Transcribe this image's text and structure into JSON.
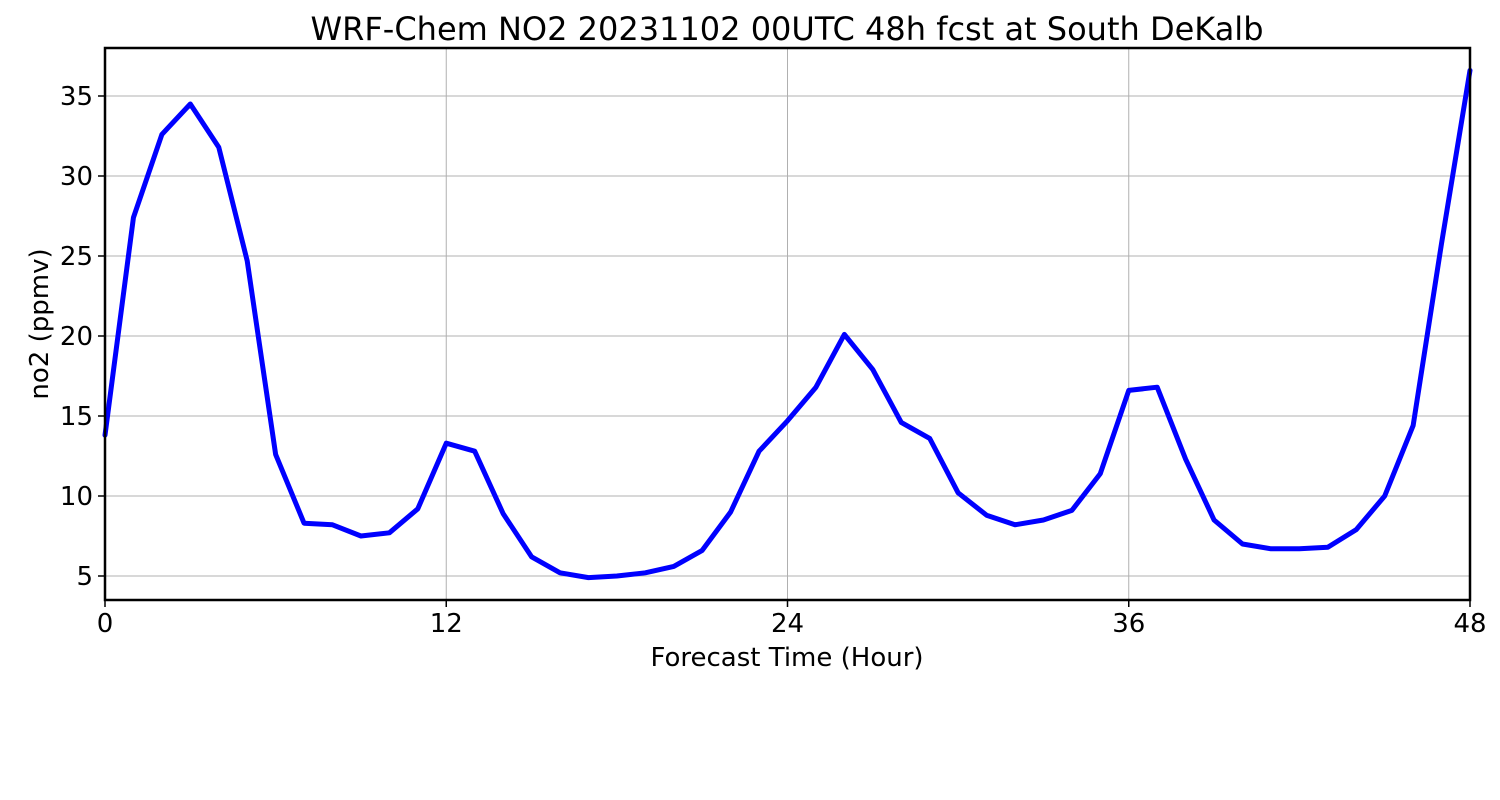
{
  "chart_data": {
    "type": "line",
    "title": "WRF-Chem NO2  20231102 00UTC 48h fcst at South DeKalb",
    "xlabel": "Forecast Time (Hour)",
    "ylabel": "no2  (ppmv)",
    "xlim": [
      0,
      48
    ],
    "ylim": [
      3.5,
      38
    ],
    "xticks": [
      0,
      12,
      24,
      36,
      48
    ],
    "yticks": [
      5,
      10,
      15,
      20,
      25,
      30,
      35
    ],
    "grid": true,
    "series": [
      {
        "color": "#0000ff",
        "x": [
          0,
          1,
          2,
          3,
          4,
          5,
          6,
          7,
          8,
          9,
          10,
          11,
          12,
          13,
          14,
          15,
          16,
          17,
          18,
          19,
          20,
          21,
          22,
          23,
          24,
          25,
          26,
          27,
          28,
          29,
          30,
          31,
          32,
          33,
          34,
          35,
          36,
          37,
          38,
          39,
          40,
          41,
          42,
          43,
          44,
          45,
          46,
          47,
          48
        ],
        "y": [
          13.8,
          27.4,
          32.6,
          34.5,
          31.8,
          24.7,
          12.6,
          8.3,
          8.2,
          7.5,
          7.7,
          9.2,
          13.3,
          12.8,
          8.9,
          6.2,
          5.2,
          4.9,
          5.0,
          5.2,
          5.6,
          6.6,
          9.0,
          12.8,
          14.7,
          16.8,
          20.1,
          17.9,
          14.6,
          13.6,
          10.2,
          8.8,
          8.2,
          8.5,
          9.1,
          11.4,
          16.6,
          16.8,
          12.3,
          8.5,
          7.0,
          6.7,
          6.7,
          6.8,
          7.9,
          10.0,
          14.4,
          25.8,
          36.6
        ]
      }
    ]
  }
}
